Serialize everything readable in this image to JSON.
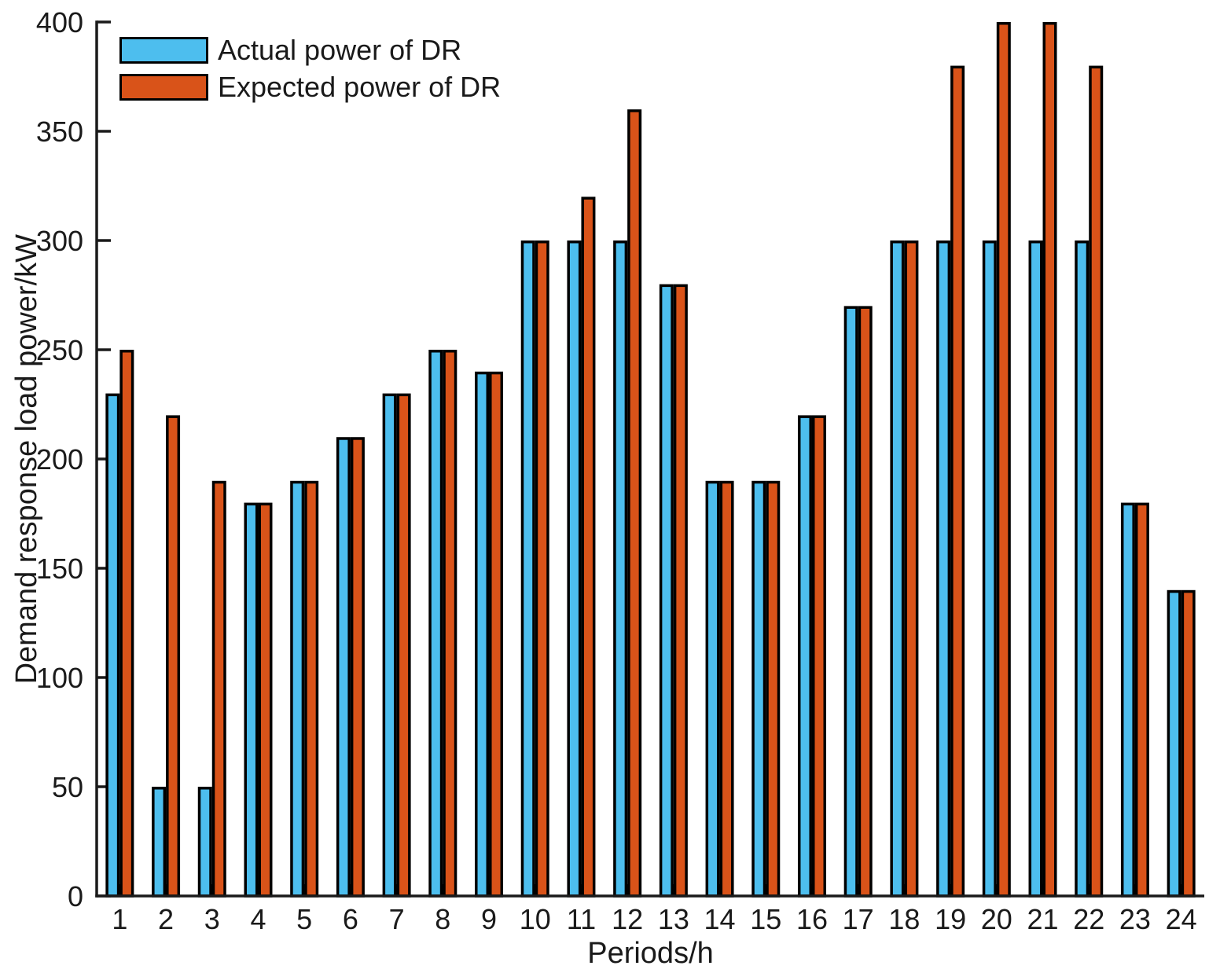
{
  "figure": {
    "background": "#ffffff",
    "axis_color": "#1a1a1a",
    "text_color": "#1a1a1a"
  },
  "chart_data": {
    "type": "bar",
    "title": "",
    "xlabel": "Periods/h",
    "ylabel": "Demand response load power/kW",
    "categories": [
      "1",
      "2",
      "3",
      "4",
      "5",
      "6",
      "7",
      "8",
      "9",
      "10",
      "11",
      "12",
      "13",
      "14",
      "15",
      "16",
      "17",
      "18",
      "19",
      "20",
      "21",
      "22",
      "23",
      "24"
    ],
    "series": [
      {
        "name": "Actual power of DR",
        "color": "#4DBEEE",
        "values": [
          230,
          50,
          50,
          180,
          190,
          210,
          230,
          250,
          240,
          300,
          300,
          300,
          280,
          190,
          190,
          220,
          270,
          300,
          300,
          300,
          300,
          300,
          180,
          140
        ]
      },
      {
        "name": "Expected power of DR",
        "color": "#D95319",
        "values": [
          250,
          220,
          190,
          180,
          190,
          210,
          230,
          250,
          240,
          300,
          320,
          360,
          280,
          190,
          190,
          220,
          270,
          300,
          380,
          400,
          400,
          380,
          180,
          140
        ]
      }
    ],
    "bar_edge_color": "#000000",
    "ylim": [
      0,
      400
    ],
    "yticks": [
      0,
      50,
      100,
      150,
      200,
      250,
      300,
      350,
      400
    ],
    "grid": false,
    "legend_position": "top-left"
  }
}
